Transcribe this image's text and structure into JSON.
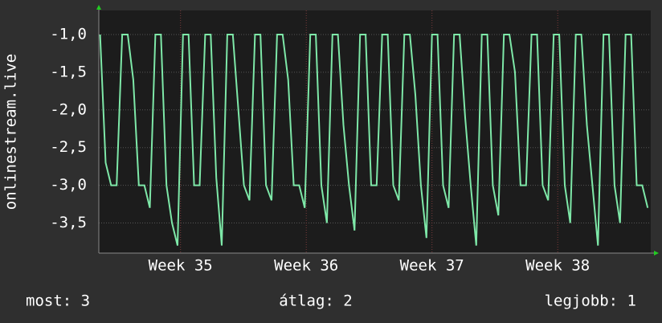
{
  "chart_data": {
    "type": "line",
    "y_label": "onlinestream.live",
    "x": [
      34.36,
      34.404,
      34.448,
      34.492,
      34.536,
      34.58,
      34.624,
      34.668,
      34.712,
      34.756,
      34.8,
      34.844,
      34.888,
      34.932,
      34.976,
      35.02,
      35.064,
      35.108,
      35.152,
      35.196,
      35.24,
      35.284,
      35.328,
      35.372,
      35.416,
      35.46,
      35.504,
      35.548,
      35.592,
      35.636,
      35.68,
      35.724,
      35.768,
      35.812,
      35.856,
      35.9,
      35.944,
      35.988,
      36.032,
      36.076,
      36.12,
      36.164,
      36.208,
      36.252,
      36.296,
      36.34,
      36.384,
      36.428,
      36.472,
      36.516,
      36.56,
      36.604,
      36.648,
      36.692,
      36.736,
      36.78,
      36.824,
      36.868,
      36.912,
      36.956,
      37.0,
      37.044,
      37.088,
      37.132,
      37.176,
      37.22,
      37.264,
      37.308,
      37.352,
      37.396,
      37.44,
      37.484,
      37.528,
      37.572,
      37.616,
      37.66,
      37.704,
      37.748,
      37.792,
      37.836,
      37.88,
      37.924,
      37.968,
      38.012,
      38.056,
      38.1,
      38.144,
      38.188,
      38.232,
      38.276,
      38.32,
      38.364,
      38.408,
      38.452,
      38.496,
      38.54,
      38.584,
      38.628,
      38.672,
      38.716
    ],
    "series": [
      {
        "color": "#7ee8a8",
        "values": [
          -1,
          -2.7,
          -3,
          -3,
          -1,
          -1,
          -1.6,
          -3,
          -3,
          -3.3,
          -1,
          -1,
          -3,
          -3.5,
          -3.8,
          -1,
          -1,
          -3,
          -3,
          -1,
          -1,
          -2.9,
          -3.8,
          -1,
          -1,
          -2,
          -3,
          -3.2,
          -1,
          -1,
          -3,
          -3.2,
          -1,
          -1,
          -1.6,
          -3,
          -3,
          -3.3,
          -1,
          -1,
          -3,
          -3.5,
          -1,
          -1,
          -2.2,
          -3,
          -3.6,
          -1,
          -1,
          -3,
          -3,
          -1,
          -1,
          -3,
          -3.2,
          -1,
          -1,
          -1.8,
          -3,
          -3.7,
          -1,
          -1,
          -3,
          -3.3,
          -1,
          -1,
          -2.1,
          -3,
          -3.8,
          -1,
          -1,
          -3,
          -3.4,
          -1,
          -1,
          -1.5,
          -3,
          -3,
          -1,
          -1,
          -3,
          -3.2,
          -1,
          -1,
          -3,
          -3.5,
          -1,
          -1,
          -2.2,
          -3,
          -3.8,
          -1,
          -1,
          -3,
          -3.5,
          -1,
          -1,
          -3,
          -3,
          -3.3
        ]
      }
    ],
    "xlim": [
      34.35,
      38.74
    ],
    "xticks": [
      {
        "value": 35,
        "label": "Week 35"
      },
      {
        "value": 36,
        "label": "Week 36"
      },
      {
        "value": 37,
        "label": "Week 37"
      },
      {
        "value": 38,
        "label": "Week 38"
      }
    ],
    "ylim": [
      -3.9,
      -0.68
    ],
    "yticks": [
      {
        "value": -1,
        "label": "-1,0"
      },
      {
        "value": -1.5,
        "label": "-1,5"
      },
      {
        "value": -2,
        "label": "-2,0"
      },
      {
        "value": -2.5,
        "label": "-2,5"
      },
      {
        "value": -3,
        "label": "-3,0"
      },
      {
        "value": -3.5,
        "label": "-3,5"
      }
    ],
    "grid": true
  },
  "footer": {
    "left": "most: 3",
    "center": "átlag: 2",
    "right": "legjobb: 1"
  }
}
